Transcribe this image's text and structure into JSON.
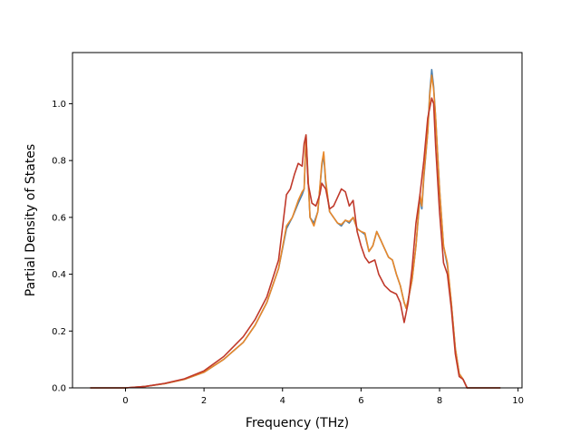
{
  "chart_data": {
    "type": "line",
    "xlabel": "Frequency (THz)",
    "ylabel": "Partial Density of States",
    "xlim": [
      -1.35,
      10.1
    ],
    "ylim": [
      0.0,
      1.18
    ],
    "xticks": [
      0,
      2,
      4,
      6,
      8,
      10
    ],
    "yticks": [
      0.0,
      0.2,
      0.4,
      0.6,
      0.8,
      1.0
    ],
    "xtick_labels": [
      "0",
      "2",
      "4",
      "6",
      "8",
      "10"
    ],
    "ytick_labels": [
      "0.0",
      "0.2",
      "0.4",
      "0.6",
      "0.8",
      "1.0"
    ],
    "grid": false,
    "legend": "none",
    "series": [
      {
        "color": "#4a7fae",
        "x": [
          -0.9,
          0.0,
          0.5,
          1.0,
          1.5,
          2.0,
          2.5,
          3.0,
          3.3,
          3.6,
          3.9,
          4.1,
          4.25,
          4.4,
          4.5,
          4.55,
          4.6,
          4.7,
          4.8,
          4.9,
          5.0,
          5.05,
          5.1,
          5.2,
          5.3,
          5.4,
          5.5,
          5.6,
          5.7,
          5.8,
          5.9,
          6.0,
          6.1,
          6.2,
          6.3,
          6.4,
          6.5,
          6.6,
          6.7,
          6.8,
          6.9,
          7.0,
          7.1,
          7.15,
          7.2,
          7.3,
          7.4,
          7.5,
          7.55,
          7.6,
          7.7,
          7.75,
          7.8,
          7.85,
          7.9,
          8.0,
          8.1,
          8.2,
          8.3,
          8.4,
          8.5,
          8.6,
          8.7,
          8.8,
          9.0,
          9.55
        ],
        "y": [
          0.0,
          0.0,
          0.005,
          0.015,
          0.03,
          0.055,
          0.1,
          0.16,
          0.22,
          0.3,
          0.42,
          0.56,
          0.6,
          0.65,
          0.68,
          0.7,
          0.88,
          0.6,
          0.58,
          0.62,
          0.78,
          0.82,
          0.72,
          0.62,
          0.6,
          0.58,
          0.57,
          0.59,
          0.58,
          0.6,
          0.56,
          0.55,
          0.54,
          0.48,
          0.5,
          0.55,
          0.52,
          0.49,
          0.46,
          0.45,
          0.4,
          0.36,
          0.3,
          0.28,
          0.31,
          0.38,
          0.5,
          0.67,
          0.63,
          0.74,
          0.9,
          1.04,
          1.12,
          1.06,
          0.95,
          0.7,
          0.5,
          0.43,
          0.3,
          0.14,
          0.05,
          0.03,
          0.0,
          0.0,
          0.0,
          0.0
        ]
      },
      {
        "color": "#e8882a",
        "x": [
          -0.9,
          0.0,
          0.5,
          1.0,
          1.5,
          2.0,
          2.5,
          3.0,
          3.3,
          3.6,
          3.9,
          4.1,
          4.25,
          4.4,
          4.5,
          4.55,
          4.6,
          4.7,
          4.8,
          4.9,
          5.0,
          5.05,
          5.1,
          5.2,
          5.3,
          5.4,
          5.5,
          5.6,
          5.7,
          5.8,
          5.9,
          6.0,
          6.1,
          6.2,
          6.3,
          6.4,
          6.5,
          6.6,
          6.7,
          6.8,
          6.9,
          7.0,
          7.1,
          7.15,
          7.2,
          7.3,
          7.4,
          7.5,
          7.55,
          7.6,
          7.7,
          7.75,
          7.8,
          7.85,
          7.9,
          8.0,
          8.1,
          8.2,
          8.3,
          8.4,
          8.5,
          8.6,
          8.7,
          8.8,
          9.0,
          9.55
        ],
        "y": [
          0.0,
          0.0,
          0.005,
          0.015,
          0.03,
          0.055,
          0.1,
          0.16,
          0.22,
          0.3,
          0.42,
          0.57,
          0.6,
          0.66,
          0.69,
          0.7,
          0.89,
          0.6,
          0.57,
          0.62,
          0.79,
          0.83,
          0.73,
          0.62,
          0.6,
          0.58,
          0.575,
          0.59,
          0.585,
          0.6,
          0.56,
          0.55,
          0.545,
          0.48,
          0.5,
          0.55,
          0.52,
          0.49,
          0.46,
          0.45,
          0.4,
          0.36,
          0.3,
          0.28,
          0.31,
          0.38,
          0.5,
          0.68,
          0.64,
          0.75,
          0.9,
          1.03,
          1.1,
          1.05,
          0.95,
          0.7,
          0.5,
          0.44,
          0.3,
          0.14,
          0.05,
          0.03,
          0.0,
          0.0,
          0.0,
          0.0
        ]
      },
      {
        "color": "#c0392b",
        "x": [
          -0.9,
          0.0,
          0.5,
          1.0,
          1.5,
          2.0,
          2.5,
          3.0,
          3.3,
          3.6,
          3.9,
          4.1,
          4.2,
          4.3,
          4.4,
          4.5,
          4.55,
          4.6,
          4.65,
          4.75,
          4.85,
          4.95,
          5.0,
          5.1,
          5.2,
          5.3,
          5.4,
          5.5,
          5.6,
          5.7,
          5.8,
          5.9,
          6.0,
          6.1,
          6.2,
          6.35,
          6.45,
          6.6,
          6.75,
          6.9,
          7.0,
          7.1,
          7.2,
          7.3,
          7.4,
          7.5,
          7.6,
          7.7,
          7.8,
          7.85,
          7.9,
          8.0,
          8.1,
          8.2,
          8.3,
          8.4,
          8.5,
          8.6,
          8.7,
          8.8,
          9.0,
          9.55
        ],
        "y": [
          0.0,
          0.0,
          0.005,
          0.016,
          0.032,
          0.06,
          0.11,
          0.18,
          0.24,
          0.32,
          0.45,
          0.68,
          0.7,
          0.75,
          0.79,
          0.78,
          0.86,
          0.89,
          0.72,
          0.65,
          0.64,
          0.68,
          0.72,
          0.7,
          0.63,
          0.64,
          0.67,
          0.7,
          0.69,
          0.64,
          0.66,
          0.55,
          0.5,
          0.46,
          0.44,
          0.45,
          0.4,
          0.36,
          0.34,
          0.33,
          0.3,
          0.23,
          0.3,
          0.42,
          0.58,
          0.68,
          0.8,
          0.95,
          1.02,
          1.0,
          0.85,
          0.62,
          0.44,
          0.4,
          0.28,
          0.12,
          0.04,
          0.03,
          0.0,
          0.0,
          0.0,
          0.0
        ]
      }
    ]
  }
}
